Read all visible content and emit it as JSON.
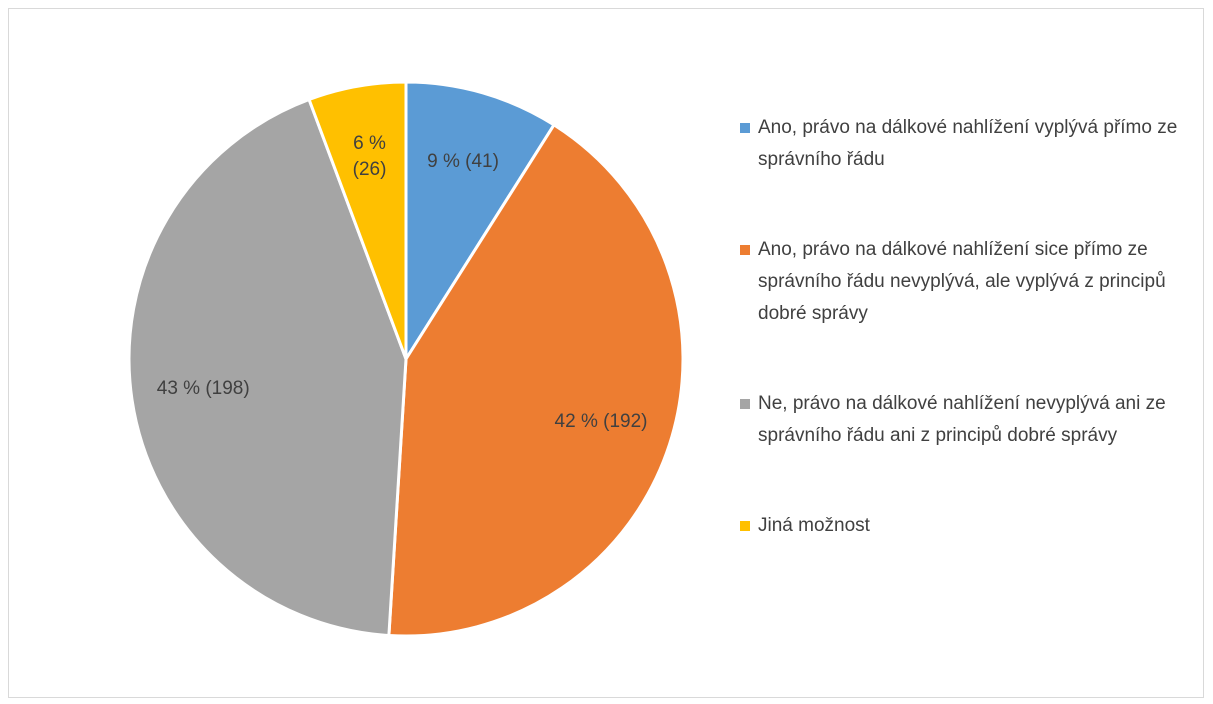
{
  "chart_data": {
    "type": "pie",
    "categories": [
      "Ano, právo na dálkové nahlížení vyplývá přímo ze správního řádu",
      "Ano, právo na dálkové nahlížení sice přímo ze správního řádu nevyplývá, ale vyplývá z principů dobré správy",
      "Ne, právo na dálkové nahlížení nevyplývá ani ze správního řádu ani z principů dobré správy",
      "Jiná možnost"
    ],
    "values": [
      41,
      192,
      198,
      26
    ],
    "value_labels": [
      "9 % (41)",
      "42 % (192)",
      "43 % (198)",
      "6 % (26)"
    ],
    "colors": [
      "#5b9bd5",
      "#ed7d31",
      "#a5a5a5",
      "#ffc000"
    ],
    "legend": "right"
  }
}
